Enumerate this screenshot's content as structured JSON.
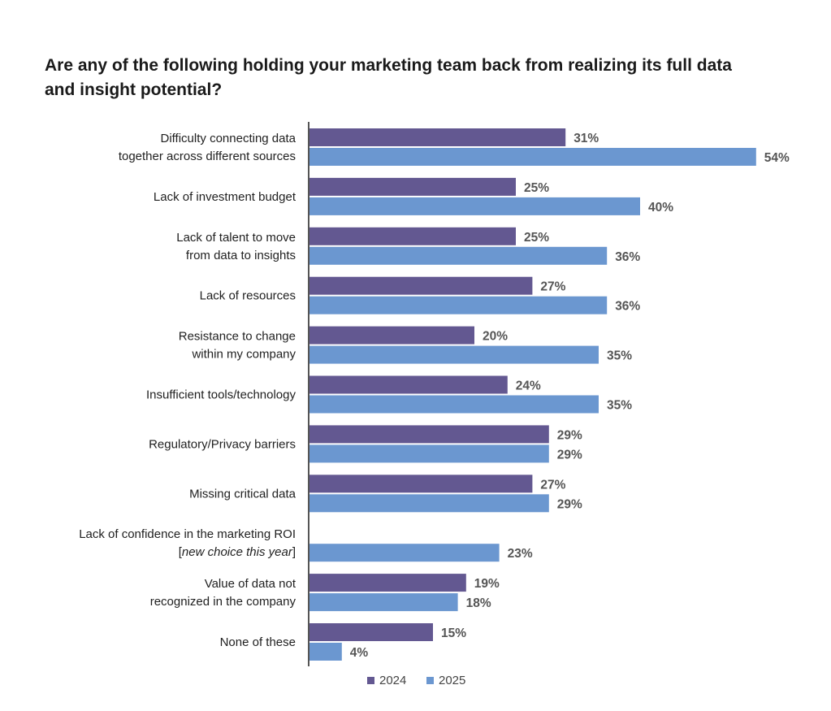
{
  "chart_data": {
    "type": "bar",
    "orientation": "horizontal",
    "title_lines": [
      "Are any of the following holding your marketing team back from realizing its full data",
      "and insight potential?"
    ],
    "categories": [
      [
        "Difficulty connecting data",
        "together across different sources"
      ],
      [
        "Lack of investment budget"
      ],
      [
        "Lack of talent to move",
        "from data to insights"
      ],
      [
        "Lack of resources"
      ],
      [
        "Resistance to change",
        "within my company"
      ],
      [
        "Insufficient tools/technology"
      ],
      [
        "Regulatory/Privacy barriers"
      ],
      [
        "Missing critical data"
      ],
      [
        "Lack of confidence in the marketing ROI",
        "[",
        "new choice this year",
        "]"
      ],
      [
        "Value of data not",
        "recognized in the company"
      ],
      [
        "None of these"
      ]
    ],
    "series": [
      {
        "name": "2024",
        "color": "#635891",
        "values": [
          31,
          25,
          25,
          27,
          20,
          24,
          29,
          27,
          null,
          19,
          15
        ]
      },
      {
        "name": "2025",
        "color": "#6b97d0",
        "values": [
          54,
          40,
          36,
          36,
          35,
          35,
          29,
          29,
          23,
          18,
          4
        ]
      }
    ],
    "value_suffix": "%",
    "legend_position": "bottom-center",
    "grid": false
  }
}
